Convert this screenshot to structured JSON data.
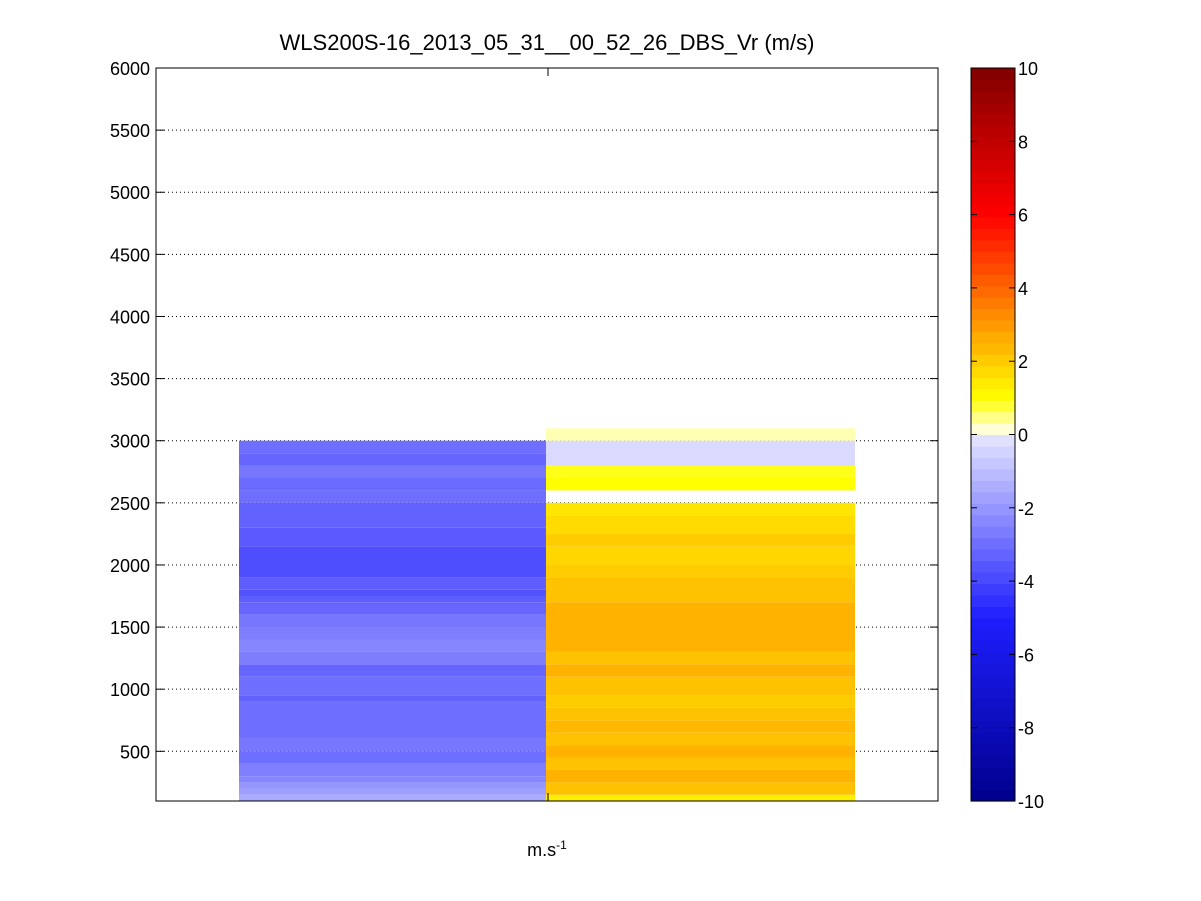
{
  "chart_data": {
    "type": "heatmap",
    "title": "WLS200S-16_2013_05_31__00_52_26_DBS_Vr (m/s)",
    "xlabel_base": "m.s",
    "xlabel_exponent": "-1",
    "ylabel": "",
    "ylim": [
      100,
      6000
    ],
    "yticks": [
      500,
      1000,
      1500,
      2000,
      2500,
      3000,
      3500,
      4000,
      4500,
      5000,
      5500,
      6000
    ],
    "grid": "horizontal-dotted",
    "colorbar": {
      "range": [
        -10,
        10
      ],
      "ticks": [
        -10,
        -8,
        -6,
        -4,
        -2,
        0,
        2,
        4,
        6,
        8,
        10
      ],
      "placement": "right"
    },
    "columns": [
      {
        "segments": [
          {
            "from": 100,
            "to": 150,
            "value": -1.5
          },
          {
            "from": 150,
            "to": 200,
            "value": -1.8
          },
          {
            "from": 200,
            "to": 250,
            "value": -2.0
          },
          {
            "from": 250,
            "to": 300,
            "value": -2.4
          },
          {
            "from": 300,
            "to": 400,
            "value": -2.6
          },
          {
            "from": 400,
            "to": 500,
            "value": -3.0
          },
          {
            "from": 500,
            "to": 600,
            "value": -2.8
          },
          {
            "from": 600,
            "to": 900,
            "value": -3.0
          },
          {
            "from": 900,
            "to": 950,
            "value": -3.3
          },
          {
            "from": 950,
            "to": 1100,
            "value": -3.0
          },
          {
            "from": 1100,
            "to": 1200,
            "value": -3.2
          },
          {
            "from": 1200,
            "to": 1300,
            "value": -2.6
          },
          {
            "from": 1300,
            "to": 1400,
            "value": -2.4
          },
          {
            "from": 1400,
            "to": 1500,
            "value": -2.6
          },
          {
            "from": 1500,
            "to": 1600,
            "value": -2.8
          },
          {
            "from": 1600,
            "to": 1700,
            "value": -3.2
          },
          {
            "from": 1700,
            "to": 1750,
            "value": -3.4
          },
          {
            "from": 1750,
            "to": 1800,
            "value": -3.7
          },
          {
            "from": 1800,
            "to": 1900,
            "value": -3.4
          },
          {
            "from": 1900,
            "to": 2150,
            "value": -3.8
          },
          {
            "from": 2150,
            "to": 2300,
            "value": -3.5
          },
          {
            "from": 2300,
            "to": 2500,
            "value": -3.3
          },
          {
            "from": 2500,
            "to": 2600,
            "value": -3.0
          },
          {
            "from": 2600,
            "to": 2700,
            "value": -3.1
          },
          {
            "from": 2700,
            "to": 2800,
            "value": -2.8
          },
          {
            "from": 2800,
            "to": 2900,
            "value": -3.2
          },
          {
            "from": 2900,
            "to": 3000,
            "value": -3.0
          }
        ]
      },
      {
        "segments": [
          {
            "from": 100,
            "to": 150,
            "value": 1.3
          },
          {
            "from": 150,
            "to": 250,
            "value": 2.2
          },
          {
            "from": 250,
            "to": 350,
            "value": 2.5
          },
          {
            "from": 350,
            "to": 450,
            "value": 2.2
          },
          {
            "from": 450,
            "to": 550,
            "value": 2.5
          },
          {
            "from": 550,
            "to": 650,
            "value": 2.2
          },
          {
            "from": 650,
            "to": 750,
            "value": 2.4
          },
          {
            "from": 750,
            "to": 850,
            "value": 2.2
          },
          {
            "from": 850,
            "to": 950,
            "value": 2.0
          },
          {
            "from": 950,
            "to": 1100,
            "value": 2.2
          },
          {
            "from": 1100,
            "to": 1200,
            "value": 2.5
          },
          {
            "from": 1200,
            "to": 1300,
            "value": 2.2
          },
          {
            "from": 1300,
            "to": 1700,
            "value": 2.5
          },
          {
            "from": 1700,
            "to": 1900,
            "value": 2.2
          },
          {
            "from": 1900,
            "to": 2000,
            "value": 2.0
          },
          {
            "from": 2000,
            "to": 2150,
            "value": 1.8
          },
          {
            "from": 2150,
            "to": 2250,
            "value": 2.0
          },
          {
            "from": 2250,
            "to": 2400,
            "value": 1.7
          },
          {
            "from": 2400,
            "to": 2500,
            "value": 1.5
          },
          {
            "from": 2600,
            "to": 2700,
            "value": 1.0
          },
          {
            "from": 2700,
            "to": 2800,
            "value": 0.9
          },
          {
            "from": 2800,
            "to": 3000,
            "value": -0.3
          },
          {
            "from": 3000,
            "to": 3100,
            "value": 0.3
          }
        ]
      }
    ]
  }
}
